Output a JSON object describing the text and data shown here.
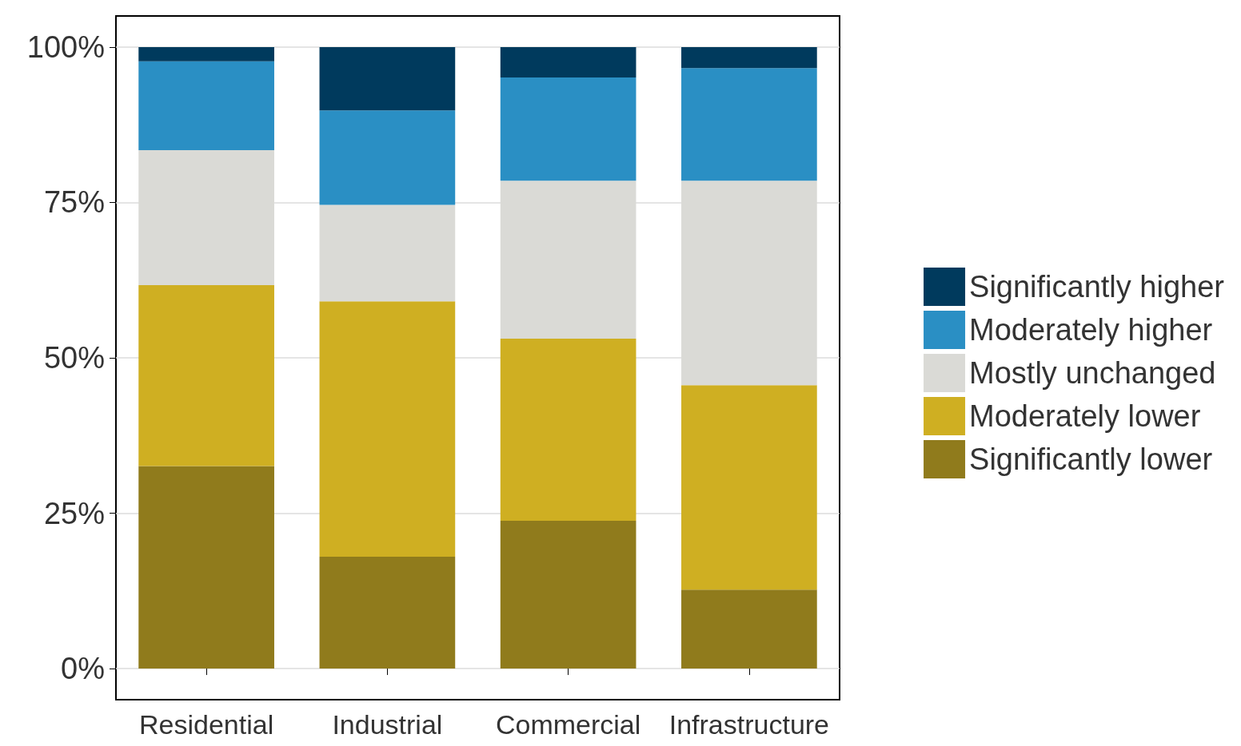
{
  "chart_data": {
    "type": "bar",
    "stacked": true,
    "categories": [
      "Residential",
      "Industrial",
      "Commercial",
      "Infrastructure"
    ],
    "series": [
      {
        "name": "Significantly lower",
        "color": "#907b1c",
        "values": [
          32.6,
          18.0,
          23.8,
          12.7
        ]
      },
      {
        "name": "Moderately lower",
        "color": "#cfaf22",
        "values": [
          29.1,
          41.1,
          29.3,
          32.9
        ]
      },
      {
        "name": "Mostly unchanged",
        "color": "#dadad6",
        "values": [
          21.7,
          15.5,
          25.4,
          32.9
        ]
      },
      {
        "name": "Moderately higher",
        "color": "#2a8fc4",
        "values": [
          14.3,
          15.2,
          16.6,
          18.1
        ]
      },
      {
        "name": "Significantly higher",
        "color": "#003a5d",
        "values": [
          2.3,
          10.2,
          4.9,
          3.4
        ]
      }
    ],
    "ylim": [
      -5,
      105
    ],
    "yticks": [
      {
        "value": 0,
        "label": "0%"
      },
      {
        "value": 25,
        "label": "25%"
      },
      {
        "value": 50,
        "label": "50%"
      },
      {
        "value": 75,
        "label": "75%"
      },
      {
        "value": 100,
        "label": "100%"
      }
    ],
    "grid": "y",
    "legend": "right"
  }
}
